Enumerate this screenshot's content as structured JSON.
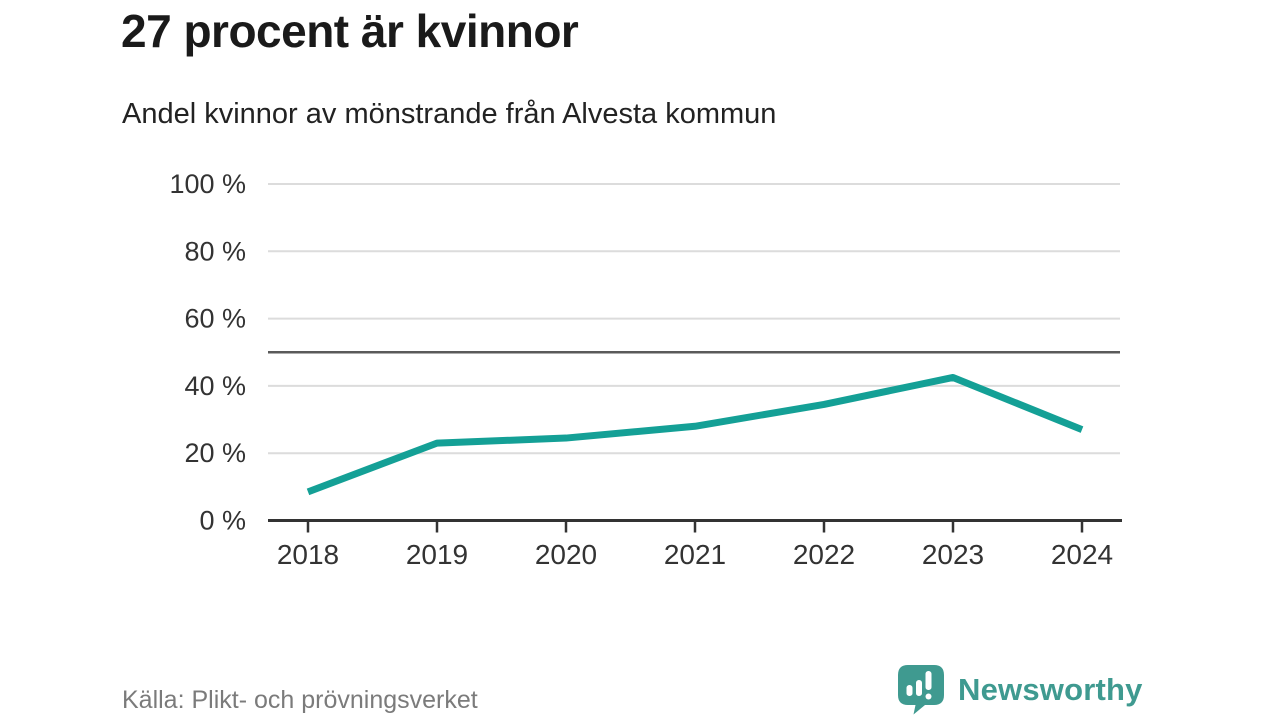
{
  "header": {
    "title": "27 procent är kvinnor",
    "subtitle": "Andel kvinnor av mönstrande från Alvesta kommun"
  },
  "footer": {
    "source": "Källa: Plikt- och prövningsverket",
    "brand": "Newsworthy",
    "logo_icon": "bar-chart-exclamation-speech-bubble"
  },
  "palette": {
    "line": "#14a096",
    "grid": "#dcdcdc",
    "reference_line": "#5a5a5a",
    "axis": "#333333",
    "tick_text": "#333333",
    "title_text": "#1a1a1a",
    "muted_text": "#7b7b7b",
    "brand_teal": "#3f9a90"
  },
  "chart_data": {
    "type": "line",
    "title": "27 procent är kvinnor",
    "subtitle": "Andel kvinnor av mönstrande från Alvesta kommun",
    "x": [
      "2018",
      "2019",
      "2020",
      "2021",
      "2022",
      "2023",
      "2024"
    ],
    "series": [
      {
        "name": "Andel kvinnor av mönstrande",
        "values": [
          8.5,
          23,
          24.5,
          28,
          34.5,
          42.5,
          27
        ]
      }
    ],
    "unit": "%",
    "ylim": [
      0,
      100
    ],
    "y_ticks": [
      {
        "value": 0,
        "label": "0 %"
      },
      {
        "value": 20,
        "label": "20 %"
      },
      {
        "value": 40,
        "label": "40 %"
      },
      {
        "value": 60,
        "label": "60 %"
      },
      {
        "value": 80,
        "label": "80 %"
      },
      {
        "value": 100,
        "label": "100 %"
      }
    ],
    "reference_line": 50,
    "grid": true,
    "legend": "none",
    "source": "Källa: Plikt- och prövningsverket"
  }
}
